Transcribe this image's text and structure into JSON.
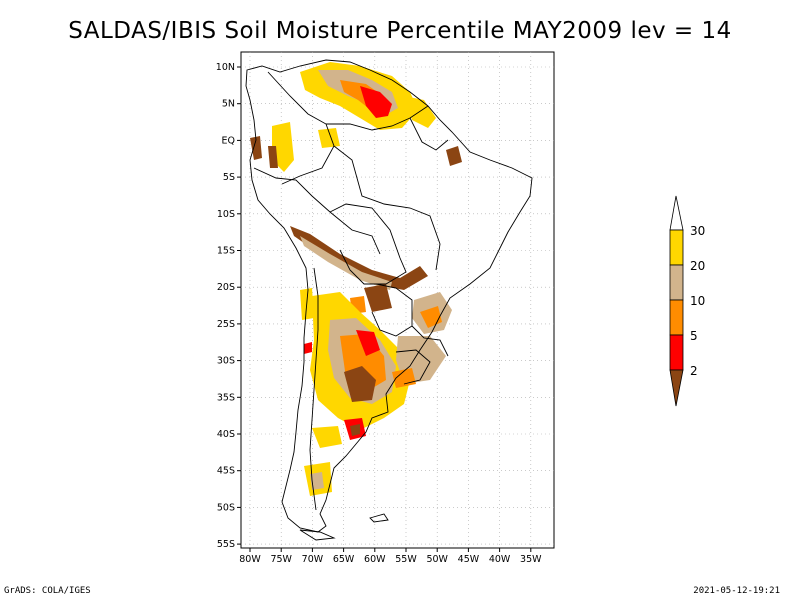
{
  "title": "SALDAS/IBIS Soil Moisture Percentile MAY2009 lev = 14",
  "footer_left": "GrADS: COLA/IGES",
  "footer_right": "2021-05-12-19:21",
  "lat_ticks": [
    "10N",
    "5N",
    "EQ",
    "5S",
    "10S",
    "15S",
    "20S",
    "25S",
    "30S",
    "35S",
    "40S",
    "45S",
    "50S",
    "55S"
  ],
  "lon_ticks": [
    "80W",
    "75W",
    "70W",
    "65W",
    "60W",
    "55W",
    "50W",
    "45W",
    "40W",
    "35W"
  ],
  "colorbar": {
    "labels": [
      "30",
      "20",
      "10",
      "5",
      "2"
    ],
    "colors": [
      "#ffffff",
      "#ffd700",
      "#d2b48c",
      "#ff8c00",
      "#ff0000",
      "#8b4513"
    ]
  },
  "colors": {
    "gold": "#ffd700",
    "tan": "#d2b48c",
    "orange": "#ff8c00",
    "red": "#ff0000",
    "brown": "#8b4513"
  }
}
